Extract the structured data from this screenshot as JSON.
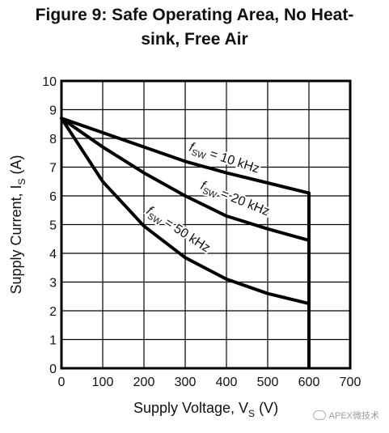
{
  "title": {
    "line1": "Figure 9: Safe Operating Area, No Heat-",
    "line2": "sink, Free Air"
  },
  "watermark": "APEX微技术",
  "chart_data": {
    "type": "line",
    "xlabel": "Supply Voltage, V",
    "xlabel_sub": "S",
    "xlabel_suffix": " (V)",
    "ylabel": "Supply Current, I",
    "ylabel_sub": "S",
    "ylabel_suffix": " (A)",
    "xlim": [
      0,
      700
    ],
    "ylim": [
      0,
      10
    ],
    "xticks": [
      0,
      100,
      200,
      300,
      400,
      500,
      600,
      700
    ],
    "yticks": [
      0,
      1,
      2,
      3,
      4,
      5,
      6,
      7,
      8,
      9,
      10
    ],
    "grid": true,
    "series": [
      {
        "name": "fSW = 10 kHz",
        "label_f": "f",
        "label_sub": "SW",
        "label_rest": " = 10 kHz",
        "x": [
          0,
          100,
          200,
          300,
          400,
          500,
          600
        ],
        "y": [
          8.7,
          8.2,
          7.7,
          7.2,
          6.8,
          6.45,
          6.1
        ]
      },
      {
        "name": "fSW = 20 kHz",
        "label_f": "f",
        "label_sub": "SW",
        "label_rest": " = 20 kHz",
        "x": [
          0,
          100,
          200,
          300,
          400,
          500,
          600
        ],
        "y": [
          8.7,
          7.7,
          6.8,
          6.0,
          5.3,
          4.85,
          4.45
        ]
      },
      {
        "name": "fSW = 50 kHz",
        "label_f": "f",
        "label_sub": "SW",
        "label_rest": " = 50 kHz",
        "x": [
          0,
          100,
          200,
          300,
          400,
          500,
          600
        ],
        "y": [
          8.7,
          6.5,
          4.95,
          3.85,
          3.1,
          2.6,
          2.25
        ]
      }
    ],
    "boundary": {
      "x": [
        600,
        600
      ],
      "y": [
        6.1,
        0
      ]
    }
  }
}
